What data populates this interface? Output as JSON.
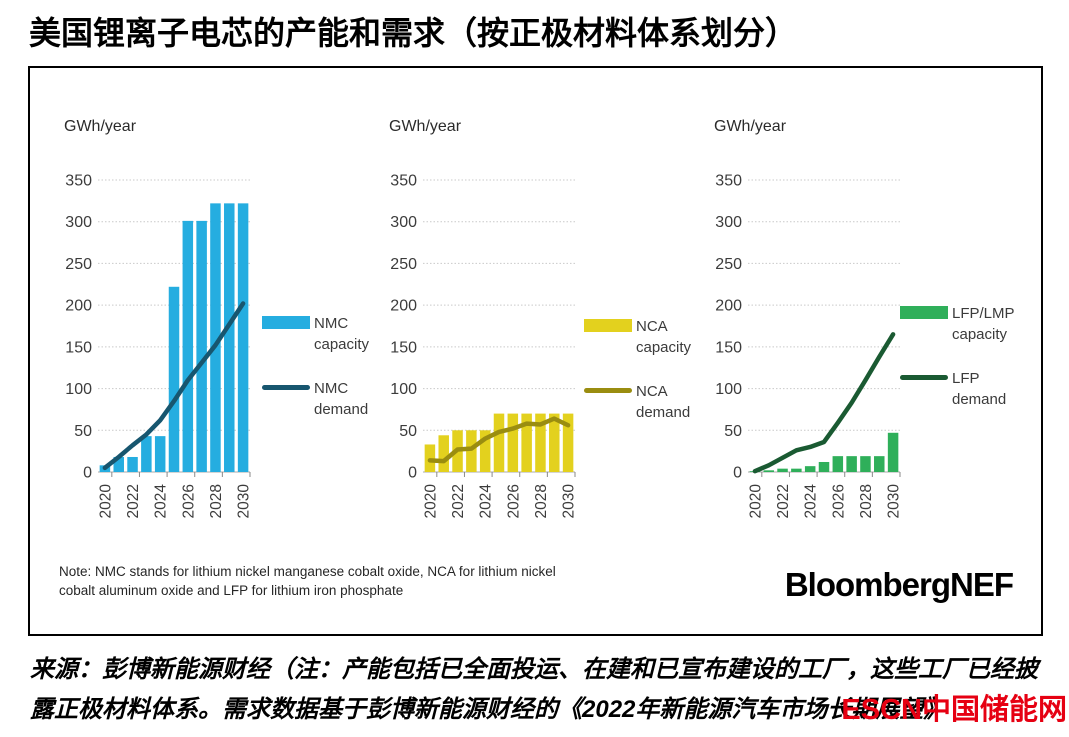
{
  "page_title": "美国锂离子电芯的产能和需求（按正极材料体系划分）",
  "note": {
    "lines": [
      "Note: NMC stands for lithium nickel manganese cobalt oxide, NCA for lithium nickel",
      "cobalt aluminum oxide and LFP for lithium iron phosphate"
    ]
  },
  "brand": "BloombergNEF",
  "source": {
    "lines": [
      "来源：彭博新能源财经（注：产能包括已全面投运、在建和已宣布建设的工厂，这些工厂已经披",
      "露正极材料体系。需求数据基于彭博新能源财经的《2022年新能源汽车市场长期展望》"
    ]
  },
  "watermark": "ESCN中国储能网",
  "colors": {
    "nmc_capacity": "#25ade0",
    "nmc_demand": "#17566f",
    "nca_capacity": "#e3d11e",
    "nca_demand": "#9a8d10",
    "lfp_capacity": "#2faf5a",
    "lfp_demand": "#1a5a32",
    "watermark_red": "#e60012",
    "gridline": "#c9c9c9"
  },
  "chart_data": [
    {
      "type": "combo",
      "title": "",
      "ylabel": "GWh/year",
      "xlabel": "",
      "categories": [
        "2020",
        "2021",
        "2022",
        "2023",
        "2024",
        "2025",
        "2026",
        "2027",
        "2028",
        "2029",
        "2030"
      ],
      "x_shown_ticks": [
        "2020",
        "2022",
        "2024",
        "2026",
        "2028",
        "2030"
      ],
      "ylim": [
        0,
        350
      ],
      "yticks": [
        0,
        50,
        100,
        150,
        200,
        250,
        300,
        350
      ],
      "grid": "horizontal-dotted",
      "legend_position": "right",
      "series": [
        {
          "name": "NMC capacity",
          "type": "bar",
          "color": "#25ade0",
          "values": [
            8,
            18,
            18,
            43,
            43,
            222,
            301,
            301,
            322,
            322,
            322
          ]
        },
        {
          "name": "NMC demand",
          "type": "line",
          "color": "#17566f",
          "values": [
            5,
            18,
            32,
            45,
            62,
            85,
            110,
            131,
            152,
            177,
            202
          ]
        }
      ]
    },
    {
      "type": "combo",
      "title": "",
      "ylabel": "GWh/year",
      "xlabel": "",
      "categories": [
        "2020",
        "2021",
        "2022",
        "2023",
        "2024",
        "2025",
        "2026",
        "2027",
        "2028",
        "2029",
        "2030"
      ],
      "x_shown_ticks": [
        "2020",
        "2022",
        "2024",
        "2026",
        "2028",
        "2030"
      ],
      "ylim": [
        0,
        350
      ],
      "yticks": [
        0,
        50,
        100,
        150,
        200,
        250,
        300,
        350
      ],
      "grid": "horizontal-dotted",
      "legend_position": "right",
      "series": [
        {
          "name": "NCA capacity",
          "type": "bar",
          "color": "#e3d11e",
          "values": [
            33,
            44,
            50,
            50,
            50,
            70,
            70,
            70,
            70,
            70,
            70
          ]
        },
        {
          "name": "NCA demand",
          "type": "line",
          "color": "#9a8d10",
          "values": [
            14,
            13,
            27,
            28,
            40,
            48,
            52,
            58,
            57,
            64,
            56
          ]
        }
      ]
    },
    {
      "type": "combo",
      "title": "",
      "ylabel": "GWh/year",
      "xlabel": "",
      "categories": [
        "2020",
        "2021",
        "2022",
        "2023",
        "2024",
        "2025",
        "2026",
        "2027",
        "2028",
        "2029",
        "2030"
      ],
      "x_shown_ticks": [
        "2020",
        "2022",
        "2024",
        "2026",
        "2028",
        "2030"
      ],
      "ylim": [
        0,
        350
      ],
      "yticks": [
        0,
        50,
        100,
        150,
        200,
        250,
        300,
        350
      ],
      "grid": "horizontal-dotted",
      "legend_position": "right",
      "series": [
        {
          "name": "LFP/LMP capacity",
          "type": "bar",
          "color": "#2faf5a",
          "values": [
            1,
            2,
            4,
            4,
            7,
            12,
            19,
            19,
            19,
            19,
            47
          ]
        },
        {
          "name": "LFP demand",
          "type": "line",
          "color": "#1a5a32",
          "values": [
            1,
            8,
            17,
            26,
            30,
            36,
            59,
            83,
            110,
            138,
            165
          ]
        }
      ]
    }
  ]
}
